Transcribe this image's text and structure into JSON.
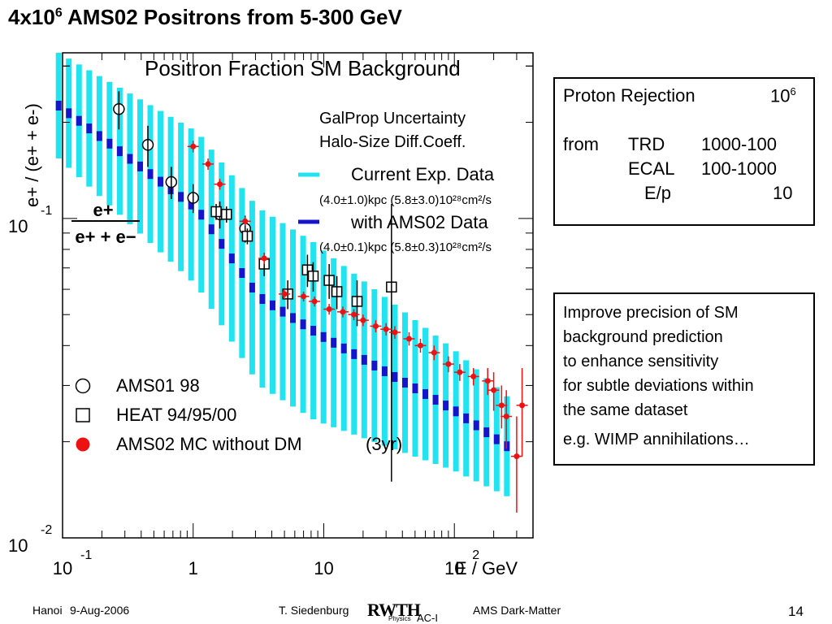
{
  "title": {
    "prefix": "4x10",
    "sup": "6",
    "rest": " AMS02 Positrons from 5-300 GeV"
  },
  "chart_data": {
    "type": "scatter",
    "title": "Positron Fraction SM Background",
    "xlabel": "E / GeV",
    "ylabel": "e+ / (e+ + e-)",
    "ratio_label": {
      "numerator": "e+",
      "denominator": "e+ + e−"
    },
    "x_scale": "log",
    "y_scale": "log",
    "xlim": [
      0.1,
      400
    ],
    "ylim": [
      0.01,
      0.33
    ],
    "x_ticks": [
      {
        "v": 0.1,
        "base": "10",
        "exp": "-1"
      },
      {
        "v": 1,
        "base": "1",
        "exp": ""
      },
      {
        "v": 10,
        "base": "10",
        "exp": ""
      },
      {
        "v": 100,
        "base": "10",
        "exp": "2"
      }
    ],
    "y_ticks": [
      {
        "v": 0.1,
        "base": "10",
        "exp": "-1"
      },
      {
        "v": 0.01,
        "base": "10",
        "exp": "-2"
      }
    ],
    "galprop_legend": {
      "title_line1": "GalProp Uncertainty",
      "title_line2": "Halo-Size  Diff.Coeff.",
      "current_label": "Current Exp. Data",
      "current_params": "(4.0±1.0)kpc  (5.8±3.0)10²⁸cm²/s",
      "ams02_label": "with AMS02 Data",
      "ams02_params": "(4.0±0.1)kpc  (5.8±0.3)10²⁸cm²/s"
    },
    "colors": {
      "current_band": "#22e4f0",
      "ams02_band": "#1515cc",
      "ams02_points": "#ee1111"
    },
    "series": [
      {
        "name": "AMS01 98",
        "marker": "circle",
        "x": [
          0.27,
          0.45,
          0.68,
          1.0,
          1.6,
          2.5
        ],
        "y": [
          0.22,
          0.17,
          0.13,
          0.116,
          0.103,
          0.093
        ],
        "yerr": [
          0.03,
          0.025,
          0.015,
          0.012,
          0.01,
          0.009
        ]
      },
      {
        "name": "HEAT 94/95/00",
        "marker": "square",
        "x": [
          1.5,
          1.8,
          2.6,
          3.5,
          5.3,
          7.5,
          8.3,
          11.0,
          12.6,
          18.0,
          33.0
        ],
        "y": [
          0.105,
          0.103,
          0.088,
          0.072,
          0.058,
          0.069,
          0.066,
          0.064,
          0.059,
          0.055,
          0.061
        ],
        "yerr": [
          0.006,
          0.006,
          0.005,
          0.006,
          0.006,
          0.008,
          0.007,
          0.008,
          0.007,
          0.009,
          0.05
        ]
      },
      {
        "name": "AMS02 MC without DM",
        "annotation": "(3yr)",
        "marker": "dot",
        "x": [
          1.0,
          1.3,
          1.6,
          2.5,
          3.5,
          5,
          7,
          8.5,
          11,
          14,
          17,
          20,
          25,
          30,
          35,
          45,
          55,
          70,
          90,
          110,
          140,
          180,
          200,
          230,
          250,
          300,
          330
        ],
        "y": [
          0.168,
          0.148,
          0.128,
          0.098,
          0.075,
          0.058,
          0.057,
          0.055,
          0.052,
          0.051,
          0.05,
          0.048,
          0.046,
          0.045,
          0.044,
          0.042,
          0.04,
          0.038,
          0.035,
          0.033,
          0.032,
          0.031,
          0.029,
          0.026,
          0.024,
          0.018,
          0.026
        ],
        "yerr": [
          0.007,
          0.006,
          0.005,
          0.003,
          0.003,
          0.002,
          0.002,
          0.002,
          0.002,
          0.002,
          0.002,
          0.002,
          0.002,
          0.002,
          0.002,
          0.002,
          0.002,
          0.002,
          0.002,
          0.002,
          0.002,
          0.003,
          0.004,
          0.004,
          0.005,
          0.006,
          0.008
        ]
      }
    ],
    "legend_placement": "bottom-left",
    "grid": false
  },
  "box1": {
    "r1": {
      "a": "Proton Rejection",
      "b": "10",
      "bsup": "6"
    },
    "r2": {
      "a": "from",
      "b": "TRD",
      "c": "1000-100"
    },
    "r3": {
      "b": "ECAL",
      "c": "100-1000"
    },
    "r4": {
      "b": "E/p",
      "c": "10"
    }
  },
  "box2": {
    "lines": [
      "Improve precision of SM",
      "background prediction",
      "to enhance sensitivity",
      "for subtle deviations within",
      "the same dataset"
    ],
    "example": "e.g. WIMP annihilations…"
  },
  "footer": {
    "location": "Hanoi",
    "date": "9-Aug-2006",
    "author": "T. Siedenburg",
    "logo": "RWTH",
    "logo_small": "Physics",
    "logo_suffix": "AC-I",
    "topic": "AMS Dark-Matter",
    "page": "14"
  }
}
